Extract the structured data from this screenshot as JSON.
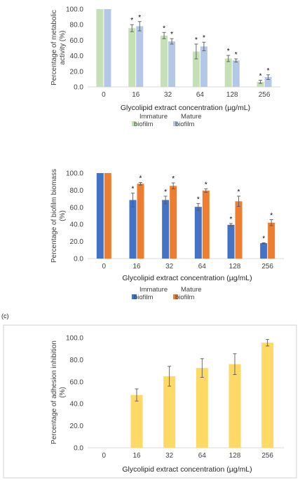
{
  "chart_data": [
    {
      "type": "bar",
      "categories": [
        "0",
        "16",
        "32",
        "64",
        "128",
        "256"
      ],
      "series": [
        {
          "name": "Immature\nbiofilm",
          "color": "#c5e0b4",
          "values": [
            100.0,
            75.5,
            66.0,
            45.5,
            36.5,
            6.5
          ],
          "errors": [
            0,
            4.5,
            4.0,
            9.5,
            4.0,
            2.0
          ],
          "significant": [
            false,
            true,
            true,
            true,
            true,
            true
          ]
        },
        {
          "name": "Mature\nbiofilm",
          "color": "#b4c7e7",
          "values": [
            100.0,
            78.0,
            58.5,
            52.0,
            34.0,
            12.5
          ],
          "errors": [
            0,
            6.0,
            3.5,
            5.5,
            2.0,
            3.0
          ],
          "significant": [
            false,
            true,
            true,
            true,
            true,
            true
          ]
        }
      ],
      "title": "",
      "xlabel": "Glycolipid extract concentration (µg/mL)",
      "ylabel": "Percentage of metabolic activity (%)",
      "ylim": [
        0,
        100
      ],
      "yticks": [
        "0.0",
        "20.0",
        "40.0",
        "60.0",
        "80.0",
        "100.0"
      ],
      "legend_position": "bottom",
      "grid": false,
      "annotation": "*"
    },
    {
      "type": "bar",
      "categories": [
        "0",
        "16",
        "32",
        "64",
        "128",
        "256"
      ],
      "series": [
        {
          "name": "Immature\nbiofilm",
          "color": "#4472c4",
          "values": [
            100.0,
            68.5,
            68.5,
            60.5,
            39.5,
            18.0
          ],
          "errors": [
            0,
            8.0,
            4.5,
            4.0,
            1.5,
            0.5
          ],
          "significant": [
            false,
            true,
            true,
            true,
            true,
            true
          ]
        },
        {
          "name": "Mature\nbiofilm",
          "color": "#ed7d31",
          "values": [
            100.0,
            87.5,
            85.0,
            79.5,
            67.0,
            42.0
          ],
          "errors": [
            0,
            1.5,
            3.5,
            2.0,
            6.0,
            3.5
          ],
          "significant": [
            false,
            true,
            true,
            true,
            true,
            true
          ]
        }
      ],
      "title": "",
      "xlabel": "Glycolipid extract concentration (µg/mL)",
      "ylabel": "Percentage of biofilm biomass (%)",
      "ylim": [
        0,
        100
      ],
      "yticks": [
        "0.0",
        "20.0",
        "40.0",
        "60.0",
        "80.0",
        "100.0"
      ],
      "legend_position": "bottom",
      "grid": false,
      "annotation": "*"
    },
    {
      "type": "bar",
      "panel_label": "(c)",
      "categories": [
        "0",
        "16",
        "32",
        "64",
        "128",
        "256"
      ],
      "series": [
        {
          "name": "",
          "color": "#ffd966",
          "values": [
            0.0,
            48.0,
            65.0,
            72.5,
            76.0,
            95.5
          ],
          "errors": [
            0,
            5.5,
            9.0,
            8.5,
            9.5,
            3.0
          ]
        }
      ],
      "title": "",
      "xlabel": "Glycolipid extract concentration (µg/mL)",
      "ylabel": "Percentage of adhesion inhibition (%)",
      "ylim": [
        0,
        100
      ],
      "yticks": [
        "0.0",
        "20.0",
        "40.0",
        "60.0",
        "80.0",
        "100.0"
      ],
      "legend_position": "none",
      "grid": false
    }
  ]
}
